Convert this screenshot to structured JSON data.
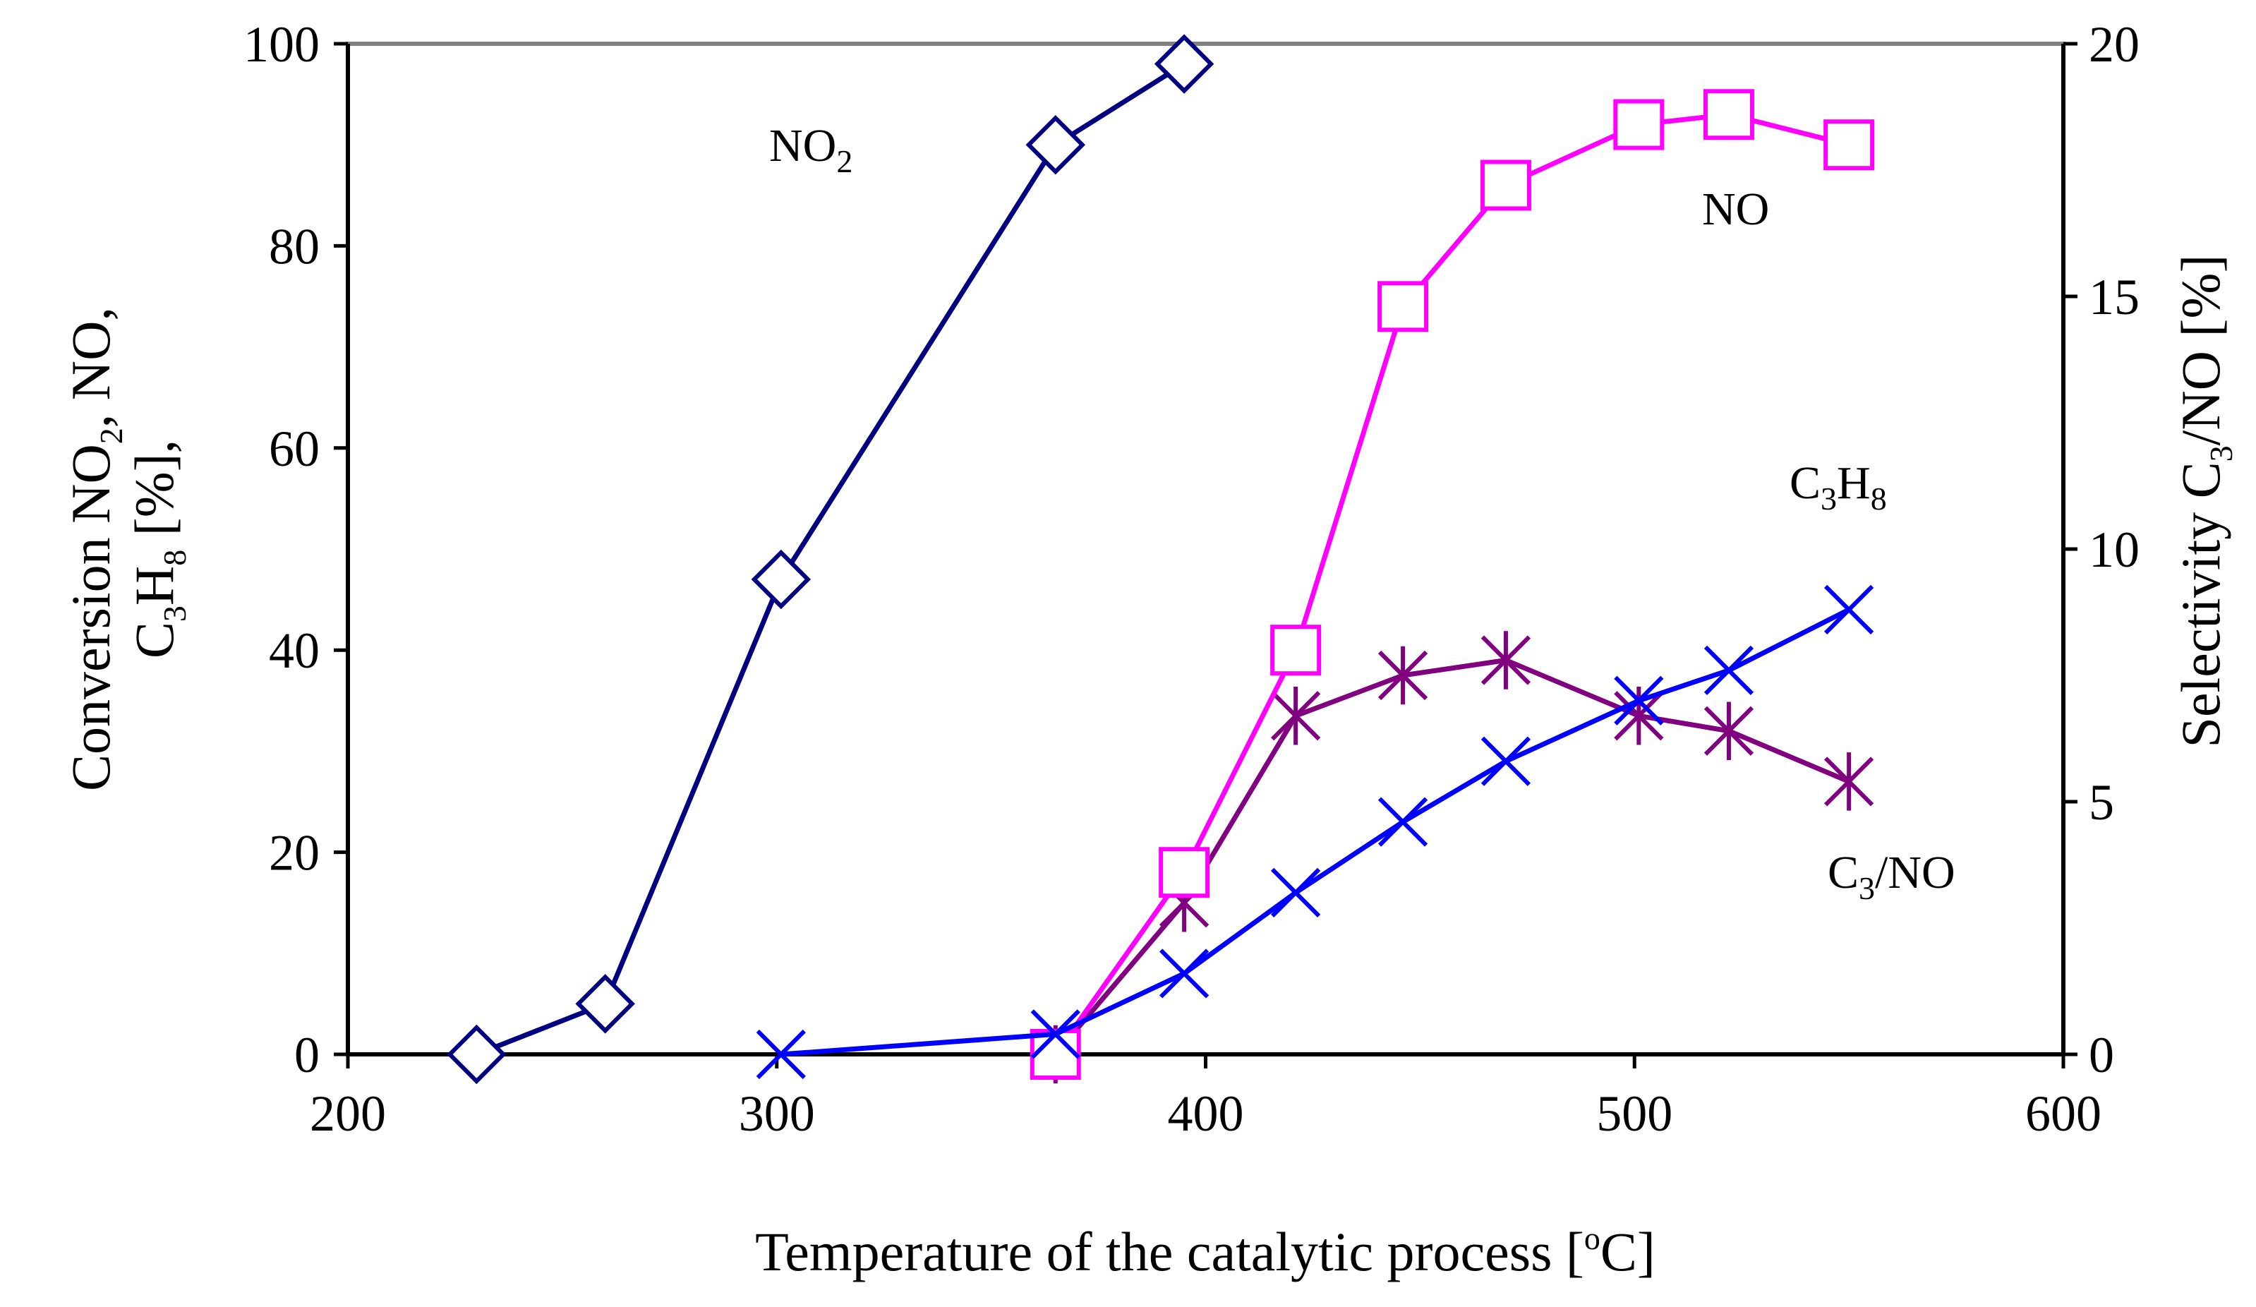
{
  "chart_data": {
    "type": "line",
    "title": "",
    "xlabel": "Temperature of the catalytic process [oC]",
    "xlabel_parts": {
      "pre": "Temperature of the catalytic process [",
      "sup": "o",
      "post": "C]"
    },
    "ylabel_left": "Conversion NO2, NO, C3H8 [%],",
    "ylabel_left_parts": {
      "line1": {
        "a": "Conversion NO",
        "sub": "2",
        "b": ", NO,"
      },
      "line2": {
        "a": "C",
        "sub1": "3",
        "b": "H",
        "sub2": "8",
        "c": " [%],"
      }
    },
    "ylabel_right": "Selectivity C3/NO [%]",
    "ylabel_right_parts": {
      "a": "Selectivity C",
      "sub": "3",
      "b": "/NO [%]"
    },
    "xlim": [
      200,
      600
    ],
    "ylim_left": [
      0,
      100
    ],
    "ylim_right": [
      0,
      20
    ],
    "x_ticks": [
      "200",
      "300",
      "400",
      "500",
      "600"
    ],
    "y_ticks_left": [
      "0",
      "20",
      "40",
      "60",
      "80",
      "100"
    ],
    "y_ticks_right": [
      "0",
      "5",
      "10",
      "15",
      "20"
    ],
    "grid": false,
    "series": [
      {
        "name": "NO2",
        "axis": "left",
        "marker": "diamond",
        "color": "#000080",
        "x": [
          230,
          260,
          301,
          365,
          395
        ],
        "y": [
          0,
          5,
          47,
          90,
          98
        ]
      },
      {
        "name": "NO",
        "axis": "left",
        "marker": "square",
        "color": "#FF00FF",
        "x": [
          365,
          395,
          421,
          446,
          470,
          501,
          522,
          550
        ],
        "y": [
          0,
          18,
          40,
          74,
          86,
          92,
          93,
          90
        ]
      },
      {
        "name": "C3H8",
        "axis": "left",
        "marker": "x",
        "color": "#0000FF",
        "x": [
          301,
          365,
          395,
          421,
          446,
          470,
          501,
          522,
          550
        ],
        "y": [
          0,
          2,
          8,
          16,
          23,
          29,
          35,
          38,
          44
        ]
      },
      {
        "name": "C3/NO",
        "axis": "right",
        "marker": "star",
        "color": "#800080",
        "x": [
          365,
          395,
          421,
          446,
          470,
          501,
          522,
          550
        ],
        "y": [
          0,
          3,
          6.7,
          7.5,
          7.8,
          6.7,
          6.4,
          5.4
        ]
      }
    ],
    "annotations": {
      "no2": {
        "a": "NO",
        "sub": "2"
      },
      "no": {
        "a": "NO"
      },
      "c3h8": {
        "a": "C",
        "sub1": "3",
        "b": "H",
        "sub2": "8"
      },
      "c3no": {
        "a": "C",
        "sub": "3",
        "b": "/NO"
      }
    }
  }
}
